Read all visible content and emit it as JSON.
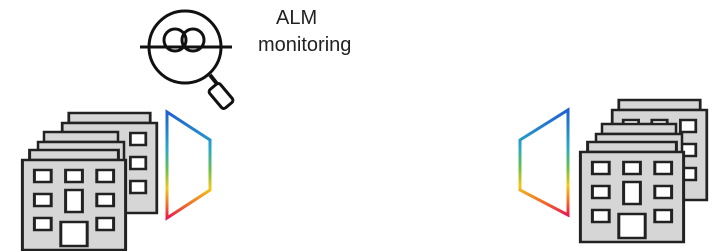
{
  "label": {
    "lines": [
      "ALM",
      "monitoring"
    ]
  }
}
